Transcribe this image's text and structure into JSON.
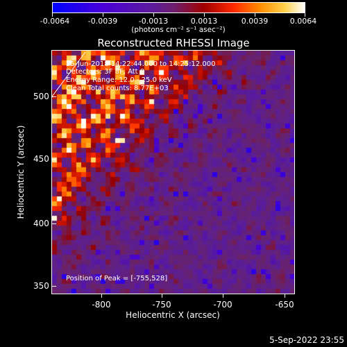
{
  "colorbar": {
    "ticks": [
      "-0.0064",
      "-0.0039",
      "-0.0013",
      "0.0013",
      "0.0039",
      "0.0064"
    ],
    "units": "(photons cm⁻² s⁻¹ asec⁻²)"
  },
  "title": "Reconstructed RHESSI Image",
  "info": {
    "line1": "25-Jun-2018 14:22:44.000 to 14:25:12.000",
    "line2": "Detectors: 3F 8F, Att 0",
    "line3": "Energy Range: 12.0 - 25.0 keV",
    "line4": "Clean     Total counts: 8.77E+03",
    "peak": "Position of Peak = [-755,528]"
  },
  "xaxis": {
    "label": "Heliocentric X (arcsec)",
    "ticks": [
      "-800",
      "-750",
      "-700",
      "-650"
    ]
  },
  "yaxis": {
    "label": "Heliocentric Y (arcsec)",
    "ticks": [
      "500",
      "450",
      "400",
      "350"
    ]
  },
  "footer": {
    "timestamp": "5-Sep-2022 23:55"
  },
  "chart_data": {
    "type": "heatmap",
    "title": "Reconstructed RHESSI Image",
    "xlabel": "Heliocentric X (arcsec)",
    "ylabel": "Heliocentric Y (arcsec)",
    "xlim": [
      -840,
      -642
    ],
    "ylim": [
      345,
      543
    ],
    "zlim": [
      -0.0064,
      0.0064
    ],
    "zlabel": "(photons cm⁻² s⁻¹ asec⁻²)",
    "colormap": "blue-purple-red-orange-yellow-white",
    "peak": [
      -755,
      528
    ]
  }
}
